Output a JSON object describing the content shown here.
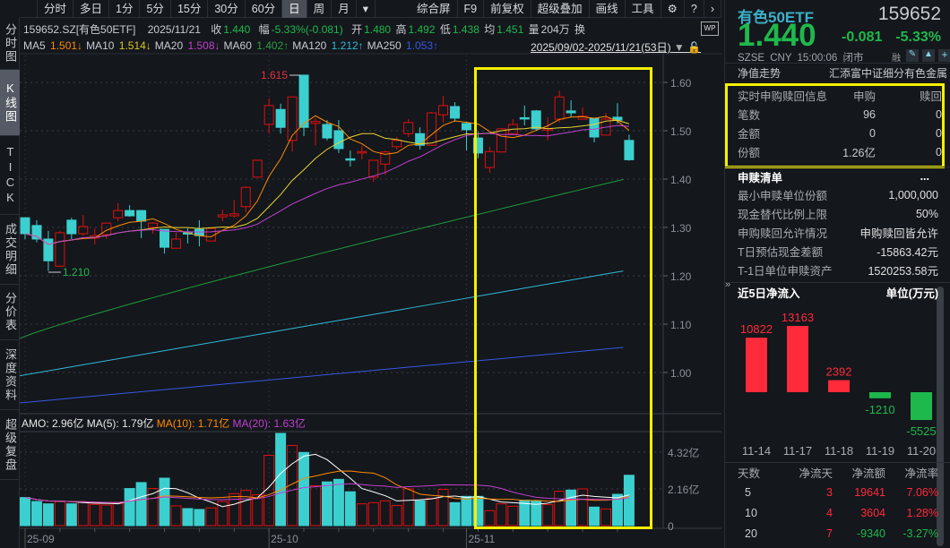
{
  "sidebar": [
    "分时图",
    "K线图",
    "TICK",
    "成交明细",
    "分价表",
    "深度资料",
    "超级复盘"
  ],
  "toolbar": {
    "periods": [
      "分时",
      "多日",
      "1分",
      "5分",
      "15分",
      "30分",
      "60分",
      "日",
      "周",
      "月"
    ],
    "active": "日",
    "more": "▾",
    "items": [
      "综合屏",
      "F9",
      "前复权",
      "超级叠加",
      "画线",
      "工具"
    ],
    "icons": [
      "gear-icon",
      "help-icon",
      "chevron-right-icon"
    ]
  },
  "info": {
    "code": "159652.SZ[有色50ETF]",
    "date": "2025/11/21",
    "close_label": "收",
    "close": "1.440",
    "chg_label": "幅",
    "chg": "-5.33%(-0.081)",
    "open_label": "开",
    "open": "1.480",
    "high_label": "高",
    "high": "1.492",
    "low_label": "低",
    "low": "1.438",
    "avg_label": "均",
    "avg": "1.451",
    "vol_label": "量",
    "vol": "204万",
    "turn_label": "换"
  },
  "ma_legend": [
    {
      "name": "MA5",
      "value": "1.501↓",
      "color": "#ff8a00"
    },
    {
      "name": "MA10",
      "value": "1.514↓",
      "color": "#d8c828"
    },
    {
      "name": "MA20",
      "value": "1.508↓",
      "color": "#c040d0"
    },
    {
      "name": "MA60",
      "value": "1.402↑",
      "color": "#28a040"
    },
    {
      "name": "MA120",
      "value": "1.212↑",
      "color": "#30b8d8"
    },
    {
      "name": "MA250",
      "value": "1.053↑",
      "color": "#3858e0"
    }
  ],
  "date_range": "2025/09/02-2025/11/21(53日)",
  "chart_data": {
    "type": "candlestick",
    "price_axis": {
      "ticks": [
        "1.60",
        "1.50",
        "1.40",
        "1.30",
        "1.20",
        "1.10",
        "1.00"
      ],
      "range": [
        0.96,
        1.63
      ]
    },
    "annotations": {
      "high": "1.615",
      "low": "1.210"
    },
    "ohlc": [
      [
        1.32,
        1.32,
        1.276,
        1.287
      ],
      [
        1.304,
        1.315,
        1.269,
        1.276
      ],
      [
        1.276,
        1.293,
        1.21,
        1.231
      ],
      [
        1.22,
        1.293,
        1.218,
        1.289
      ],
      [
        1.315,
        1.32,
        1.276,
        1.287
      ],
      [
        1.287,
        1.326,
        1.283,
        1.302
      ],
      [
        1.278,
        1.298,
        1.265,
        1.283
      ],
      [
        1.285,
        1.309,
        1.276,
        1.309
      ],
      [
        1.32,
        1.35,
        1.313,
        1.335
      ],
      [
        1.335,
        1.346,
        1.322,
        1.324
      ],
      [
        1.335,
        1.335,
        1.278,
        1.313
      ],
      [
        1.3,
        1.311,
        1.287,
        1.309
      ],
      [
        1.296,
        1.296,
        1.246,
        1.259
      ],
      [
        1.257,
        1.289,
        1.257,
        1.276
      ],
      [
        1.289,
        1.298,
        1.267,
        1.287
      ],
      [
        1.296,
        1.315,
        1.261,
        1.283
      ],
      [
        1.272,
        1.298,
        1.272,
        1.298
      ],
      [
        1.322,
        1.337,
        1.313,
        1.326
      ],
      [
        1.324,
        1.357,
        1.32,
        1.328
      ],
      [
        1.343,
        1.385,
        1.331,
        1.383
      ],
      [
        1.404,
        1.439,
        1.404,
        1.439
      ],
      [
        1.513,
        1.567,
        1.494,
        1.552
      ],
      [
        1.544,
        1.556,
        1.494,
        1.507
      ],
      [
        1.48,
        1.57,
        1.457,
        1.57
      ],
      [
        1.615,
        1.615,
        1.489,
        1.507
      ],
      [
        1.515,
        1.526,
        1.47,
        1.519
      ],
      [
        1.513,
        1.522,
        1.48,
        1.485
      ],
      [
        1.5,
        1.522,
        1.454,
        1.463
      ],
      [
        1.442,
        1.459,
        1.426,
        1.441
      ],
      [
        1.454,
        1.469,
        1.441,
        1.457
      ],
      [
        1.404,
        1.439,
        1.394,
        1.439
      ],
      [
        1.431,
        1.459,
        1.409,
        1.456
      ],
      [
        1.467,
        1.487,
        1.461,
        1.48
      ],
      [
        1.494,
        1.524,
        1.487,
        1.517
      ],
      [
        1.494,
        1.507,
        1.461,
        1.47
      ],
      [
        1.47,
        1.539,
        1.47,
        1.537
      ],
      [
        1.533,
        1.572,
        1.517,
        1.552
      ],
      [
        1.55,
        1.559,
        1.519,
        1.526
      ],
      [
        1.515,
        1.519,
        1.459,
        1.502
      ],
      [
        1.485,
        1.498,
        1.443,
        1.454
      ],
      [
        1.424,
        1.467,
        1.413,
        1.457
      ],
      [
        1.456,
        1.506,
        1.456,
        1.504
      ],
      [
        1.494,
        1.524,
        1.493,
        1.513
      ],
      [
        1.527,
        1.552,
        1.511,
        1.526
      ],
      [
        1.541,
        1.543,
        1.5,
        1.504
      ],
      [
        1.502,
        1.528,
        1.48,
        1.504
      ],
      [
        1.524,
        1.583,
        1.517,
        1.57
      ],
      [
        1.541,
        1.563,
        1.528,
        1.537
      ],
      [
        1.524,
        1.548,
        1.524,
        1.53
      ],
      [
        1.526,
        1.526,
        1.476,
        1.487
      ],
      [
        1.491,
        1.537,
        1.491,
        1.524
      ],
      [
        1.528,
        1.557,
        1.515,
        1.522
      ],
      [
        1.48,
        1.492,
        1.438,
        1.44
      ]
    ],
    "long_ma": {
      "MA60": [
        1.07,
        1.402
      ],
      "MA120": [
        0.993,
        1.212
      ],
      "MA250": [
        0.937,
        1.053
      ]
    },
    "volume_header": {
      "amo": "AMO: 2.96亿",
      "ma5": "MA(5): 1.79亿",
      "ma10": "MA(10): 1.71亿",
      "ma20": "MA(20): 1.63亿"
    },
    "volume_axis": {
      "ticks": [
        "4.32亿",
        "2.16亿",
        "0"
      ]
    },
    "volume_yi": [
      1.65,
      1.42,
      1.28,
      1.42,
      1.28,
      1.39,
      1.25,
      1.21,
      1.3,
      2.18,
      2.53,
      2.18,
      2.79,
      1.16,
      1.0,
      0.95,
      1.04,
      1.42,
      1.88,
      2.07,
      1.81,
      4.13,
      5.47,
      4.71,
      4.3,
      2.34,
      2.57,
      2.72,
      1.99,
      1.28,
      1.35,
      1.46,
      1.18,
      2.16,
      1.46,
      1.6,
      2.13,
      1.35,
      1.72,
      1.72,
      0.88,
      1.28,
      1.14,
      1.49,
      1.46,
      1.23,
      2.02,
      2.09,
      2.16,
      1.09,
      0.98,
      1.84,
      2.96
    ],
    "x_labels": [
      {
        "label": "25-09",
        "index": 0
      },
      {
        "label": "25-10",
        "index": 21
      },
      {
        "label": "25-11",
        "index": 38
      }
    ]
  },
  "right": {
    "name": "有色50ETF",
    "code": "159652",
    "price": "1.440",
    "change": "-0.081",
    "pct": "-5.33%",
    "exchange": "SZSE",
    "currency": "CNY",
    "time": "15:00:06",
    "status": "闭市",
    "rong": "融",
    "nav_label": "净值走势",
    "fund_name": "汇添富中证细分有色金属",
    "realtime": {
      "title": "实时申购赎回信息",
      "col1": "申购",
      "col2": "赎回",
      "rows": [
        [
          "笔数",
          "96",
          "0"
        ],
        [
          "金额",
          "0",
          "0"
        ],
        [
          "份额",
          "1.26亿",
          "0"
        ]
      ]
    },
    "list_title": "申赎清单",
    "list_more": "...",
    "list": [
      [
        "最小申赎单位份额",
        "1,000,000"
      ],
      [
        "现金替代比例上限",
        "50%"
      ],
      [
        "申购赎回允许情况",
        "申购赎回皆允许"
      ],
      [
        "T日预估现金差额",
        "-15863.42元"
      ],
      [
        "T-1日单位申赎资产",
        "1520253.58元"
      ]
    ],
    "flow_title": "近5日净流入",
    "flow_unit": "单位(万元)",
    "flow": {
      "dates": [
        "11-14",
        "11-17",
        "11-18",
        "11-19",
        "11-20"
      ],
      "values": [
        10822,
        13163,
        2392,
        -1210,
        -5525
      ]
    },
    "table": {
      "headers": [
        "天数",
        "净流天",
        "净流额",
        "净流率"
      ],
      "rows": [
        [
          "5",
          "3",
          "19641",
          "7.06%"
        ],
        [
          "10",
          "4",
          "3604",
          "1.28%"
        ],
        [
          "20",
          "7",
          "-9340",
          "-3.27%"
        ]
      ]
    },
    "colors": {
      "up": "#ff2a3a",
      "down": "#1fb84c",
      "candle_down": "#3ccfcf",
      "highlight": "#f5f000"
    }
  }
}
